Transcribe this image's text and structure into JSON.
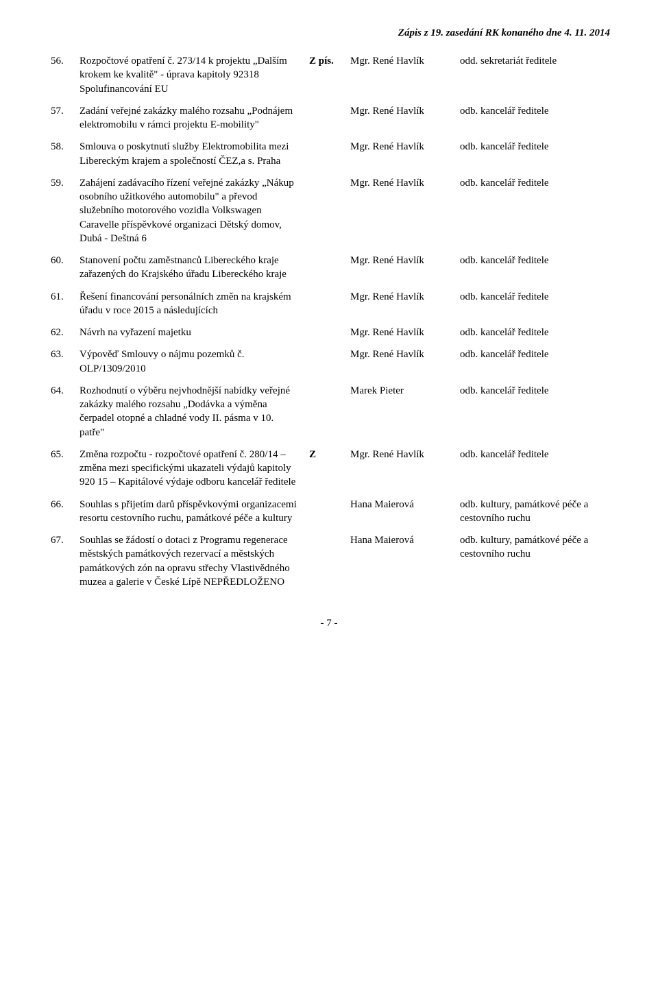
{
  "header": "Zápis z 19. zasedání RK konaného dne 4. 11. 2014",
  "page_number": "- 7 -",
  "rows": [
    {
      "num": "56.",
      "title": "Rozpočtové opatření č. 273/14 k projektu „Dalším krokem ke kvalitě\" - úprava kapitoly 92318 Spolufinancování EU",
      "mark": "Z pís.",
      "person": "Mgr. René Havlík",
      "dept": "odd. sekretariát ředitele"
    },
    {
      "num": "57.",
      "title": "Zadání veřejné zakázky malého rozsahu „Podnájem elektromobilu v rámci projektu E-mobility\"",
      "mark": "",
      "person": "Mgr. René Havlík",
      "dept": "odb. kancelář ředitele"
    },
    {
      "num": "58.",
      "title": "Smlouva o poskytnutí služby Elektromobilita mezi Libereckým krajem a společností ČEZ,a s. Praha",
      "mark": "",
      "person": "Mgr. René Havlík",
      "dept": "odb. kancelář ředitele"
    },
    {
      "num": "59.",
      "title": "Zahájení zadávacího řízení veřejné zakázky „Nákup osobního užitkového automobilu\" a převod služebního motorového vozidla Volkswagen Caravelle příspěvkové organizaci Dětský domov, Dubá - Deštná 6",
      "mark": "",
      "person": "Mgr. René Havlík",
      "dept": "odb. kancelář ředitele"
    },
    {
      "num": "60.",
      "title": "Stanovení počtu zaměstnanců Libereckého kraje zařazených do Krajského úřadu Libereckého kraje",
      "mark": "",
      "person": "Mgr. René Havlík",
      "dept": "odb. kancelář ředitele"
    },
    {
      "num": "61.",
      "title": "Řešení financování personálních změn na krajském úřadu v roce 2015 a následujících",
      "mark": "",
      "person": "Mgr. René Havlík",
      "dept": "odb. kancelář ředitele"
    },
    {
      "num": "62.",
      "title": "Návrh na vyřazení majetku",
      "mark": "",
      "person": "Mgr. René Havlík",
      "dept": "odb. kancelář ředitele"
    },
    {
      "num": "63.",
      "title": "Výpověď Smlouvy o nájmu pozemků č. OLP/1309/2010",
      "mark": "",
      "person": "Mgr. René Havlík",
      "dept": "odb. kancelář ředitele"
    },
    {
      "num": "64.",
      "title": "Rozhodnutí o výběru nejvhodnější nabídky veřejné zakázky malého rozsahu „Dodávka a výměna čerpadel otopné a chladné vody II. pásma v 10. patře\"",
      "mark": "",
      "person": "Marek Pieter",
      "dept": "odb. kancelář ředitele"
    },
    {
      "num": "65.",
      "title": "Změna rozpočtu - rozpočtové opatření č. 280/14 – změna mezi specifickými ukazateli výdajů kapitoly 920 15 – Kapitálové výdaje odboru kancelář ředitele",
      "mark": "Z",
      "person": "Mgr. René Havlík",
      "dept": "odb. kancelář ředitele"
    },
    {
      "num": "66.",
      "title": "Souhlas s přijetím darů příspěvkovými organizacemi resortu cestovního ruchu, památkové péče a kultury",
      "mark": "",
      "person": "Hana Maierová",
      "dept": "odb. kultury, památkové péče a cestovního ruchu"
    },
    {
      "num": "67.",
      "title": "Souhlas se žádostí o dotaci z Programu regenerace městských památkových rezervací a městských památkových zón na opravu střechy Vlastivědného muzea a galerie v České Lípě NEPŘEDLOŽENO",
      "mark": "",
      "person": "Hana Maierová",
      "dept": "odb. kultury, památkové péče a cestovního ruchu"
    }
  ]
}
